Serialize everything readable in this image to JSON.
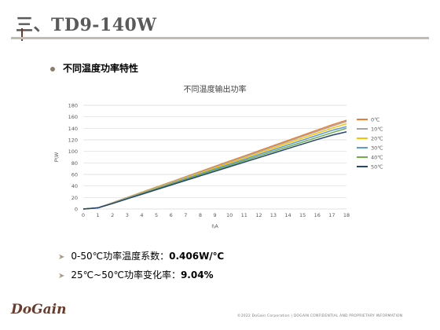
{
  "slide": {
    "title": "三、TD9-140W",
    "bullet1": "不同温度功率特性",
    "stat1_label": "0-50℃功率温度系数：",
    "stat1_value": "0.406W/℃",
    "stat2_label": "25℃~50℃功率变化率：",
    "stat2_value": "9.04%",
    "logo": "DoGain",
    "footer": "©2022 DoGain Corporation    |    DOGAIN CONFIDENTIAL AND PROPRIETARY INFORMATION"
  },
  "chart_data": {
    "type": "line",
    "title": "不同温度输出功率",
    "xlabel": "I\\A",
    "ylabel": "P\\W",
    "x": [
      0,
      1,
      2,
      3,
      4,
      5,
      6,
      7,
      8,
      9,
      10,
      11,
      12,
      13,
      14,
      15,
      16,
      17,
      18
    ],
    "xlim": [
      0,
      18
    ],
    "ylim": [
      0,
      180
    ],
    "yticks": [
      0,
      20,
      40,
      60,
      80,
      100,
      120,
      140,
      160,
      180
    ],
    "grid": true,
    "legend_position": "right",
    "series": [
      {
        "name": "0℃",
        "color": "#ed7d31",
        "values": [
          0,
          2,
          11,
          20,
          29,
          38,
          47,
          56,
          65,
          74,
          83,
          92,
          101,
          110,
          119,
          128,
          137,
          146,
          154
        ]
      },
      {
        "name": "10℃",
        "color": "#a5a5a5",
        "values": [
          0,
          2,
          10.7,
          19.6,
          28.5,
          37.4,
          46.3,
          55.1,
          64,
          72.9,
          81.7,
          90.6,
          99.4,
          108.3,
          117.1,
          126,
          134.8,
          143.7,
          152
        ]
      },
      {
        "name": "20℃",
        "color": "#ffc000",
        "values": [
          0,
          2,
          10.4,
          19.1,
          27.8,
          36.5,
          45.1,
          53.8,
          62.5,
          71.1,
          79.8,
          88.4,
          97.1,
          105.7,
          114.4,
          123,
          131.6,
          140.2,
          148
        ]
      },
      {
        "name": "30℃",
        "color": "#5b9bd5",
        "values": [
          0,
          2,
          10.1,
          18.6,
          27.1,
          35.5,
          44,
          52.4,
          60.8,
          69.2,
          77.6,
          86,
          94.4,
          102.8,
          111.2,
          119.6,
          128,
          136.4,
          143
        ]
      },
      {
        "name": "40℃",
        "color": "#70ad47",
        "values": [
          0,
          2,
          9.8,
          18.1,
          26.4,
          34.6,
          42.8,
          51,
          59.2,
          67.4,
          75.5,
          83.7,
          91.8,
          100,
          108.1,
          116.2,
          124.3,
          132.4,
          140
        ]
      },
      {
        "name": "50℃",
        "color": "#264478",
        "values": [
          0,
          2,
          9.5,
          17.6,
          25.6,
          33.6,
          41.6,
          49.6,
          57.5,
          65.4,
          73.3,
          81.2,
          89.1,
          97,
          104.9,
          112.8,
          120.6,
          128,
          134
        ]
      }
    ]
  }
}
